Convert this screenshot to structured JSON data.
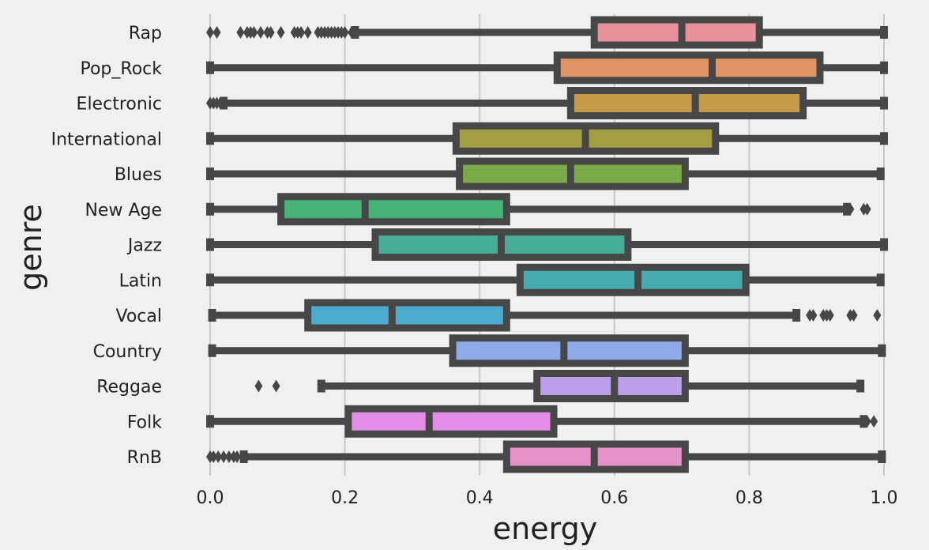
{
  "chart_data": {
    "type": "box",
    "orientation": "horizontal",
    "xlabel": "energy",
    "ylabel": "genre",
    "xlim": [
      0.0,
      1.0
    ],
    "xticks": [
      "0.0",
      "0.2",
      "0.4",
      "0.6",
      "0.8",
      "1.0"
    ],
    "grid": "vertical",
    "categories": [
      "Rap",
      "Pop_Rock",
      "Electronic",
      "International",
      "Blues",
      "New Age",
      "Jazz",
      "Latin",
      "Vocal",
      "Country",
      "Reggae",
      "Folk",
      "RnB"
    ],
    "boxes": [
      {
        "genre": "Rap",
        "whisker_low": 0.215,
        "q1": 0.57,
        "median": 0.7,
        "q3": 0.815,
        "whisker_high": 1.0,
        "color": "#e8919b",
        "outliers": [
          0.0,
          0.01,
          0.045,
          0.055,
          0.06,
          0.065,
          0.075,
          0.085,
          0.09,
          0.105,
          0.125,
          0.13,
          0.135,
          0.145,
          0.16,
          0.165,
          0.17,
          0.175,
          0.18,
          0.185,
          0.19,
          0.195,
          0.2,
          0.21
        ]
      },
      {
        "genre": "Pop_Rock",
        "whisker_low": 0.0,
        "q1": 0.515,
        "median": 0.745,
        "q3": 0.905,
        "whisker_high": 1.0,
        "color": "#e09463",
        "outliers": []
      },
      {
        "genre": "Electronic",
        "whisker_low": 0.02,
        "q1": 0.535,
        "median": 0.72,
        "q3": 0.88,
        "whisker_high": 1.0,
        "color": "#c59b4a",
        "outliers": [
          0.0,
          0.005,
          0.01,
          0.015
        ]
      },
      {
        "genre": "International",
        "whisker_low": 0.0,
        "q1": 0.365,
        "median": 0.557,
        "q3": 0.75,
        "whisker_high": 1.0,
        "color": "#a29f42",
        "outliers": []
      },
      {
        "genre": "Blues",
        "whisker_low": 0.0,
        "q1": 0.37,
        "median": 0.535,
        "q3": 0.705,
        "whisker_high": 0.995,
        "color": "#7aab47",
        "outliers": []
      },
      {
        "genre": "New Age",
        "whisker_low": 0.0,
        "q1": 0.105,
        "median": 0.23,
        "q3": 0.44,
        "whisker_high": 0.945,
        "color": "#47b27a",
        "outliers": [
          0.95,
          0.97,
          0.975
        ]
      },
      {
        "genre": "Jazz",
        "whisker_low": 0.0,
        "q1": 0.245,
        "median": 0.432,
        "q3": 0.62,
        "whisker_high": 1.0,
        "color": "#45ad98",
        "outliers": []
      },
      {
        "genre": "Latin",
        "whisker_low": 0.0,
        "q1": 0.46,
        "median": 0.635,
        "q3": 0.795,
        "whisker_high": 0.995,
        "color": "#47aaaf",
        "outliers": []
      },
      {
        "genre": "Vocal",
        "whisker_low": 0.003,
        "q1": 0.145,
        "median": 0.27,
        "q3": 0.44,
        "whisker_high": 0.87,
        "color": "#4dabd0",
        "outliers": [
          0.89,
          0.895,
          0.91,
          0.915,
          0.92,
          0.95,
          0.955,
          0.99
        ]
      },
      {
        "genre": "Country",
        "whisker_low": 0.003,
        "q1": 0.36,
        "median": 0.525,
        "q3": 0.705,
        "whisker_high": 0.997,
        "color": "#8eaae8",
        "outliers": []
      },
      {
        "genre": "Reggae",
        "whisker_low": 0.165,
        "q1": 0.485,
        "median": 0.6,
        "q3": 0.705,
        "whisker_high": 0.965,
        "color": "#bb9fe9",
        "outliers": [
          0.072,
          0.098
        ]
      },
      {
        "genre": "Folk",
        "whisker_low": 0.0,
        "q1": 0.205,
        "median": 0.325,
        "q3": 0.51,
        "whisker_high": 0.97,
        "color": "#e48de8",
        "outliers": [
          0.975,
          0.985
        ]
      },
      {
        "genre": "RnB",
        "whisker_low": 0.05,
        "q1": 0.44,
        "median": 0.57,
        "q3": 0.705,
        "whisker_high": 0.997,
        "color": "#e891c9",
        "outliers": [
          0.0,
          0.005,
          0.012,
          0.02,
          0.028,
          0.035,
          0.04
        ]
      }
    ]
  },
  "colors": {
    "background": "#f0f0f0",
    "gridline": "#c8c8c8",
    "outline": "#474747"
  }
}
